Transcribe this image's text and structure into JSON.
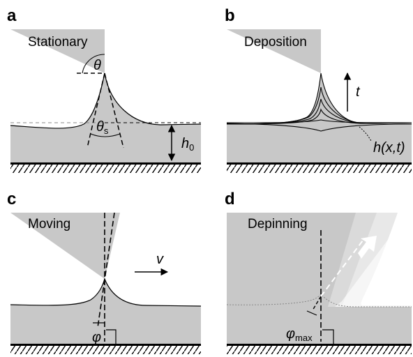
{
  "panels": [
    {
      "label": "a",
      "title": "Stationary",
      "symbols": {
        "theta": "θ",
        "theta_s": {
          "symbol": "θ",
          "subscript": "s"
        },
        "height": {
          "symbol": "h",
          "subscript": "0"
        }
      }
    },
    {
      "label": "b",
      "title": "Deposition",
      "symbols": {
        "time": "t",
        "profile": "h(x,t)"
      }
    },
    {
      "label": "c",
      "title": "Moving",
      "symbols": {
        "velocity": "v",
        "angle": "φ"
      }
    },
    {
      "label": "d",
      "title": "Depinning",
      "symbols": {
        "angle": {
          "symbol": "φ",
          "subscript": "max"
        }
      }
    }
  ]
}
